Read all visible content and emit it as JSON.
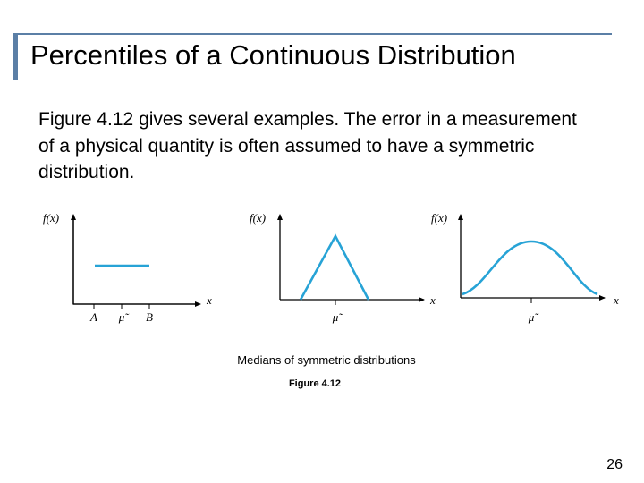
{
  "title": "Percentiles of a Continuous Distribution",
  "body": "Figure 4.12 gives several examples. The error in a measurement of a physical quantity is often assumed to have a symmetric distribution.",
  "figure": {
    "panels": [
      {
        "y_label": "f(x)",
        "x_label": "x",
        "ticks": [
          "A",
          "μ̃",
          "B"
        ]
      },
      {
        "y_label": "f(x)",
        "x_label": "x",
        "ticks": [
          "μ̃"
        ]
      },
      {
        "y_label": "f(x)",
        "x_label": "x",
        "ticks": [
          "μ̃"
        ]
      }
    ],
    "caption": "Medians of symmetric distributions",
    "label": "Figure 4.12"
  },
  "page_number": "26"
}
